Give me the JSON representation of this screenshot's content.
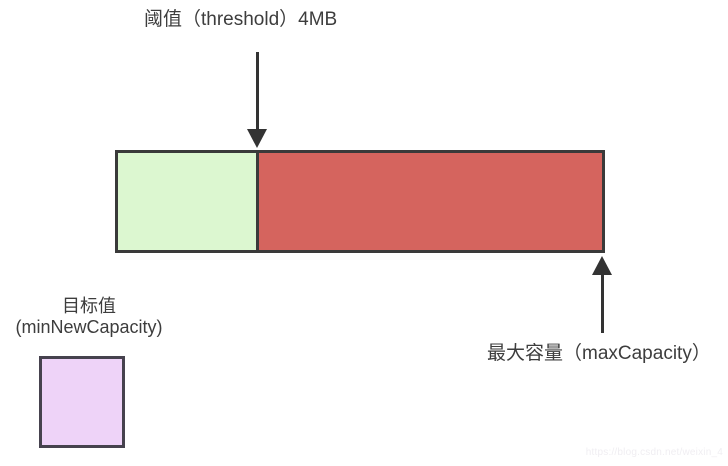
{
  "diagram": {
    "threshold": {
      "label": "阈值（threshold）4MB"
    },
    "bar": {
      "below_threshold_color": "#dcf7d0",
      "above_threshold_color": "#d5645e",
      "border_color": "#3a3a3a"
    },
    "max_capacity": {
      "label": "最大容量（maxCapacity）"
    },
    "target": {
      "label_line1": "目标值",
      "label_line2": "(minNewCapacity)",
      "square_color": "#eed3f8"
    },
    "watermark": {
      "text": "https://blog.csdn.net/weixin_4"
    },
    "colors": {
      "text": "#3d3d3d",
      "arrow": "#333333"
    }
  }
}
